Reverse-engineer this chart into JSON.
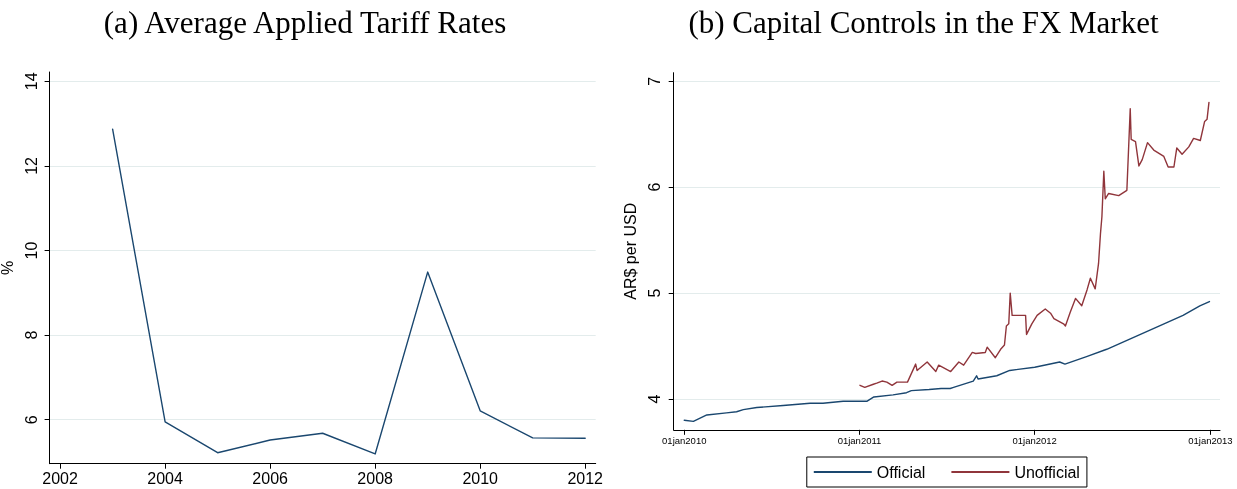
{
  "chart_data": [
    {
      "type": "line",
      "title": "(a) Average Applied Tariff Rates",
      "ylabel": "%",
      "x": [
        2003,
        2004,
        2005,
        2006,
        2007,
        2008,
        2009,
        2010,
        2011,
        2012
      ],
      "values": [
        12.87,
        5.95,
        5.22,
        5.52,
        5.68,
        5.19,
        9.49,
        6.21,
        5.57,
        5.56
      ],
      "color": "#1a476f",
      "xlim": [
        2001.8,
        2012.2
      ],
      "xticks": [
        2002,
        2004,
        2006,
        2008,
        2010,
        2012
      ],
      "ylim": [
        4.96,
        14.22
      ],
      "yticks": [
        6,
        8,
        10,
        12,
        14
      ],
      "grid": "y"
    },
    {
      "type": "line",
      "title": "(b) Capital Controls in the FX Market",
      "ylabel": "AR$ per USD",
      "xlim": [
        "2009-12-10",
        "2013-01-21"
      ],
      "xticks": [
        {
          "value": "2010-01-01",
          "label": "01jan2010"
        },
        {
          "value": "2011-01-01",
          "label": "01jan2011"
        },
        {
          "value": "2012-01-01",
          "label": "01jan2012"
        },
        {
          "value": "2013-01-01",
          "label": "01jan2013"
        }
      ],
      "ylim": [
        3.71,
        7.08
      ],
      "yticks": [
        4,
        5,
        6,
        7
      ],
      "grid": "y",
      "legend": "bottom",
      "series": [
        {
          "name": "Official",
          "color": "#1a476f",
          "x": [
            "2010-01-01",
            "2010-01-20",
            "2010-02-17",
            "2010-03-30",
            "2010-04-20",
            "2010-05-04",
            "2010-06-01",
            "2010-07-26",
            "2010-09-20",
            "2010-10-17",
            "2010-11-28",
            "2011-01-01",
            "2011-01-17",
            "2011-01-31",
            "2011-03-12",
            "2011-04-09",
            "2011-04-19",
            "2011-05-26",
            "2011-06-20",
            "2011-07-09",
            "2011-07-16",
            "2011-08-26",
            "2011-09-02",
            "2011-09-05",
            "2011-10-14",
            "2011-11-10",
            "2012-01-01",
            "2012-02-22",
            "2012-03-04",
            "2012-04-18",
            "2012-05-30",
            "2012-07-24",
            "2012-09-17",
            "2012-11-05",
            "2012-12-10",
            "2012-12-30"
          ],
          "values": [
            3.8,
            3.79,
            3.85,
            3.87,
            3.88,
            3.9,
            3.92,
            3.94,
            3.96,
            3.96,
            3.98,
            3.98,
            3.98,
            4.02,
            4.04,
            4.06,
            4.08,
            4.09,
            4.1,
            4.1,
            4.11,
            4.17,
            4.22,
            4.19,
            4.22,
            4.27,
            4.3,
            4.35,
            4.33,
            4.4,
            4.47,
            4.58,
            4.69,
            4.79,
            4.88,
            4.92
          ]
        },
        {
          "name": "Unofficial",
          "color": "#90353b",
          "x": [
            "2011-01-02",
            "2011-01-12",
            "2011-01-30",
            "2011-02-06",
            "2011-02-17",
            "2011-02-27",
            "2011-03-10",
            "2011-03-20",
            "2011-04-11",
            "2011-04-28",
            "2011-05-01",
            "2011-05-22",
            "2011-06-09",
            "2011-06-15",
            "2011-07-10",
            "2011-07-27",
            "2011-08-06",
            "2011-08-24",
            "2011-08-31",
            "2011-09-20",
            "2011-09-24",
            "2011-10-11",
            "2011-10-22",
            "2011-10-30",
            "2011-11-03",
            "2011-11-08",
            "2011-11-11",
            "2011-11-15",
            "2011-12-13",
            "2011-12-15",
            "2011-12-26",
            "2012-01-06",
            "2012-01-23",
            "2012-02-03",
            "2012-02-10",
            "2012-03-01",
            "2012-03-05",
            "2012-03-15",
            "2012-03-26",
            "2012-04-08",
            "2012-04-19",
            "2012-04-26",
            "2012-05-06",
            "2012-05-13",
            "2012-05-17",
            "2012-05-20",
            "2012-05-24",
            "2012-05-27",
            "2012-06-03",
            "2012-06-24",
            "2012-07-11",
            "2012-07-18",
            "2012-07-20",
            "2012-07-29",
            "2012-08-05",
            "2012-08-12",
            "2012-08-23",
            "2012-09-05",
            "2012-09-26",
            "2012-10-05",
            "2012-10-17",
            "2012-10-23",
            "2012-11-03",
            "2012-11-17",
            "2012-11-27",
            "2012-12-11",
            "2012-12-20",
            "2012-12-25",
            "2012-12-29"
          ],
          "values": [
            4.13,
            4.11,
            4.14,
            4.15,
            4.17,
            4.16,
            4.13,
            4.16,
            4.16,
            4.33,
            4.27,
            4.35,
            4.26,
            4.32,
            4.26,
            4.35,
            4.32,
            4.44,
            4.43,
            4.44,
            4.49,
            4.39,
            4.47,
            4.51,
            4.69,
            4.71,
            5.0,
            4.79,
            4.79,
            4.61,
            4.71,
            4.79,
            4.85,
            4.81,
            4.76,
            4.71,
            4.69,
            4.82,
            4.95,
            4.88,
            5.03,
            5.14,
            5.04,
            5.28,
            5.56,
            5.72,
            6.15,
            5.89,
            5.94,
            5.92,
            5.97,
            6.74,
            6.45,
            6.43,
            6.2,
            6.26,
            6.42,
            6.35,
            6.29,
            6.19,
            6.19,
            6.37,
            6.31,
            6.38,
            6.46,
            6.44,
            6.62,
            6.64,
            6.8
          ]
        }
      ]
    }
  ]
}
